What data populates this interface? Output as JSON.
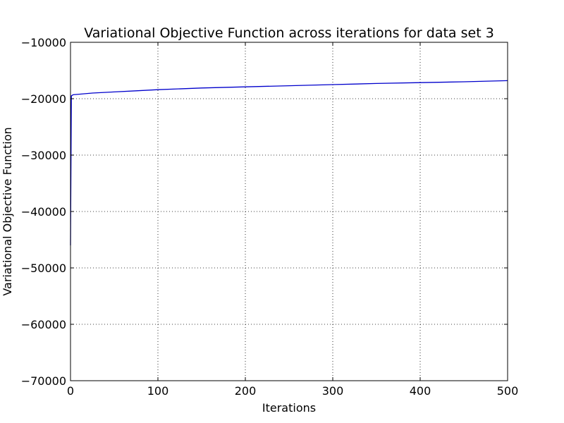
{
  "chart_data": {
    "type": "line",
    "title": "Variational Objective Function across iterations for data set 3",
    "xlabel": "Iterations",
    "ylabel": "Variational Objective Function",
    "xlim": [
      0,
      500
    ],
    "ylim": [
      -70000,
      -10000
    ],
    "xticks": [
      0,
      100,
      200,
      300,
      400,
      500
    ],
    "xtick_labels": [
      "0",
      "100",
      "200",
      "300",
      "400",
      "500"
    ],
    "yticks": [
      -70000,
      -60000,
      -50000,
      -40000,
      -30000,
      -20000,
      -10000
    ],
    "ytick_labels": [
      "−70000",
      "−60000",
      "−50000",
      "−40000",
      "−30000",
      "−20000",
      "−10000"
    ],
    "grid": true,
    "line_color": "#0000cc",
    "series": [
      {
        "x": [
          0,
          1,
          3,
          10,
          25,
          50,
          75,
          100,
          150,
          200,
          250,
          300,
          350,
          400,
          450,
          500
        ],
        "y": [
          -46000,
          -19500,
          -19300,
          -19200,
          -19000,
          -18800,
          -18600,
          -18400,
          -18100,
          -17900,
          -17700,
          -17500,
          -17300,
          -17150,
          -17000,
          -16800
        ]
      }
    ]
  }
}
